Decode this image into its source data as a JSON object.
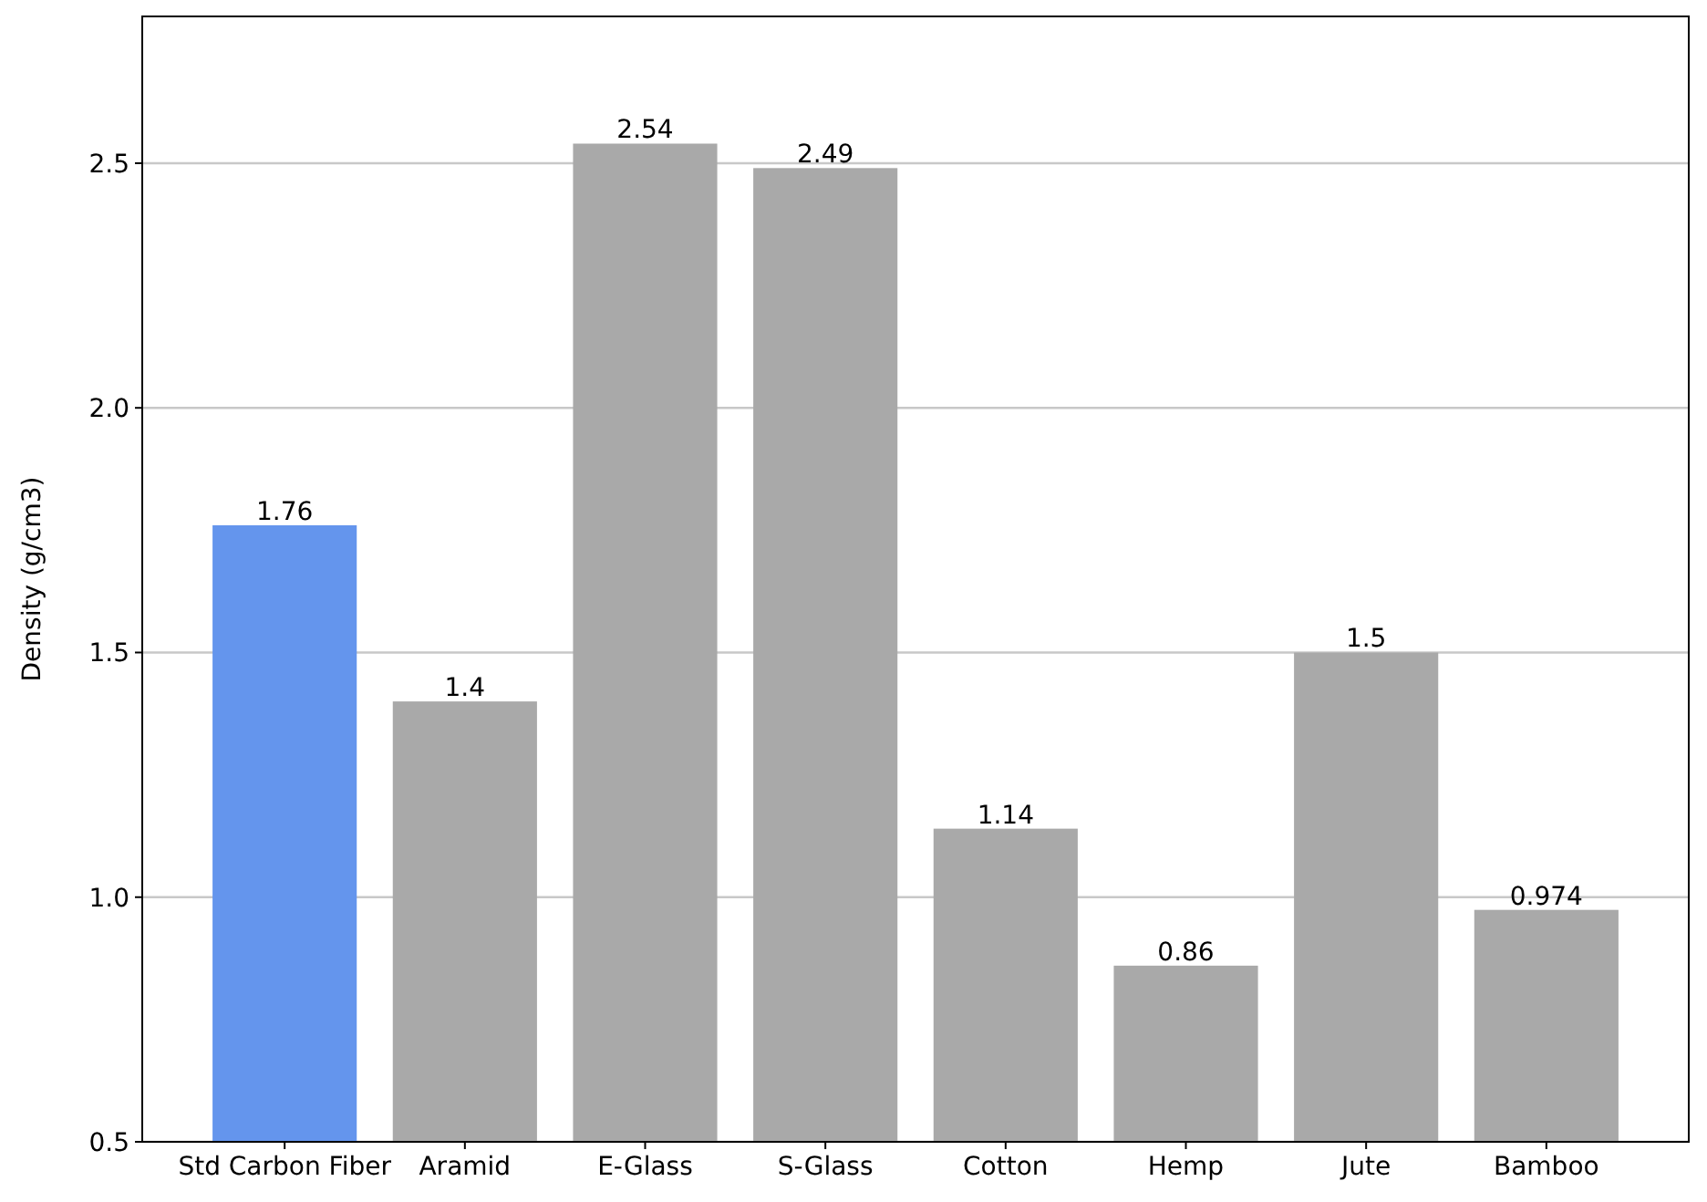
{
  "chart_data": {
    "type": "bar",
    "ylabel": "Density (g/cm3)",
    "categories": [
      "Std Carbon Fiber",
      "Aramid",
      "E-Glass",
      "S-Glass",
      "Cotton",
      "Hemp",
      "Jute",
      "Bamboo"
    ],
    "values": [
      1.76,
      1.4,
      2.54,
      2.49,
      1.14,
      0.86,
      1.5,
      0.974
    ],
    "colors": [
      "#6495ed",
      "#a9a9a9",
      "#a9a9a9",
      "#a9a9a9",
      "#a9a9a9",
      "#a9a9a9",
      "#a9a9a9",
      "#a9a9a9"
    ],
    "ylim": [
      0.5,
      2.8
    ],
    "yticks": [
      0.5,
      {
        "value": 1,
        "label": "1.0"
      },
      1.5,
      {
        "value": 2,
        "label": "2.0"
      },
      2.5
    ],
    "grid": "y",
    "data_labels": true
  }
}
